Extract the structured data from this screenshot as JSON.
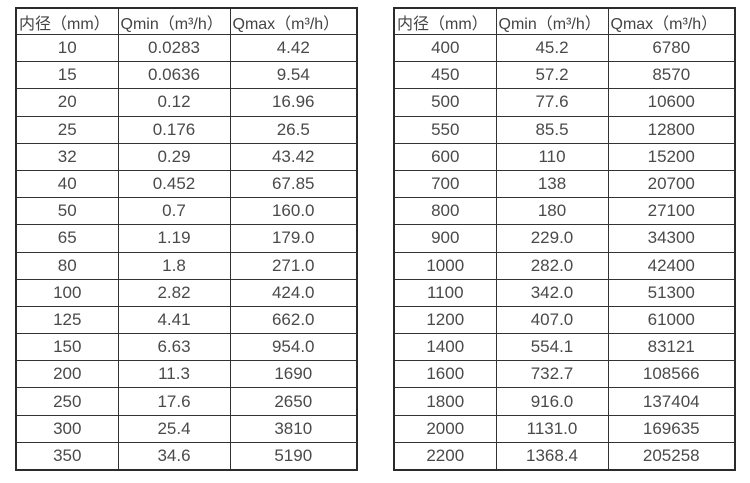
{
  "page": {
    "background": "#ffffff",
    "text_color": "#4a4a4a",
    "border_color": "#333333"
  },
  "tables": [
    {
      "name": "flow-rate-table-small-diameters",
      "headers": [
        "内径（mm）",
        "Qmin（m³/h）",
        "Qmax（m³/h）"
      ],
      "rows": [
        [
          "10",
          "0.0283",
          "4.42"
        ],
        [
          "15",
          "0.0636",
          "9.54"
        ],
        [
          "20",
          "0.12",
          "16.96"
        ],
        [
          "25",
          "0.176",
          "26.5"
        ],
        [
          "32",
          "0.29",
          "43.42"
        ],
        [
          "40",
          "0.452",
          "67.85"
        ],
        [
          "50",
          "0.7",
          "160.0"
        ],
        [
          "65",
          "1.19",
          "179.0"
        ],
        [
          "80",
          "1.8",
          "271.0"
        ],
        [
          "100",
          "2.82",
          "424.0"
        ],
        [
          "125",
          "4.41",
          "662.0"
        ],
        [
          "150",
          "6.63",
          "954.0"
        ],
        [
          "200",
          "11.3",
          "1690"
        ],
        [
          "250",
          "17.6",
          "2650"
        ],
        [
          "300",
          "25.4",
          "3810"
        ],
        [
          "350",
          "34.6",
          "5190"
        ]
      ]
    },
    {
      "name": "flow-rate-table-large-diameters",
      "headers": [
        "内径（mm）",
        "Qmin（m³/h）",
        "Qmax（m³/h）"
      ],
      "rows": [
        [
          "400",
          "45.2",
          "6780"
        ],
        [
          "450",
          "57.2",
          "8570"
        ],
        [
          "500",
          "77.6",
          "10600"
        ],
        [
          "550",
          "85.5",
          "12800"
        ],
        [
          "600",
          "110",
          "15200"
        ],
        [
          "700",
          "138",
          "20700"
        ],
        [
          "800",
          "180",
          "27100"
        ],
        [
          "900",
          "229.0",
          "34300"
        ],
        [
          "1000",
          "282.0",
          "42400"
        ],
        [
          "1100",
          "342.0",
          "51300"
        ],
        [
          "1200",
          "407.0",
          "61000"
        ],
        [
          "1400",
          "554.1",
          "83121"
        ],
        [
          "1600",
          "732.7",
          "108566"
        ],
        [
          "1800",
          "916.0",
          "137404"
        ],
        [
          "2000",
          "1131.0",
          "169635"
        ],
        [
          "2200",
          "1368.4",
          "205258"
        ]
      ]
    }
  ]
}
